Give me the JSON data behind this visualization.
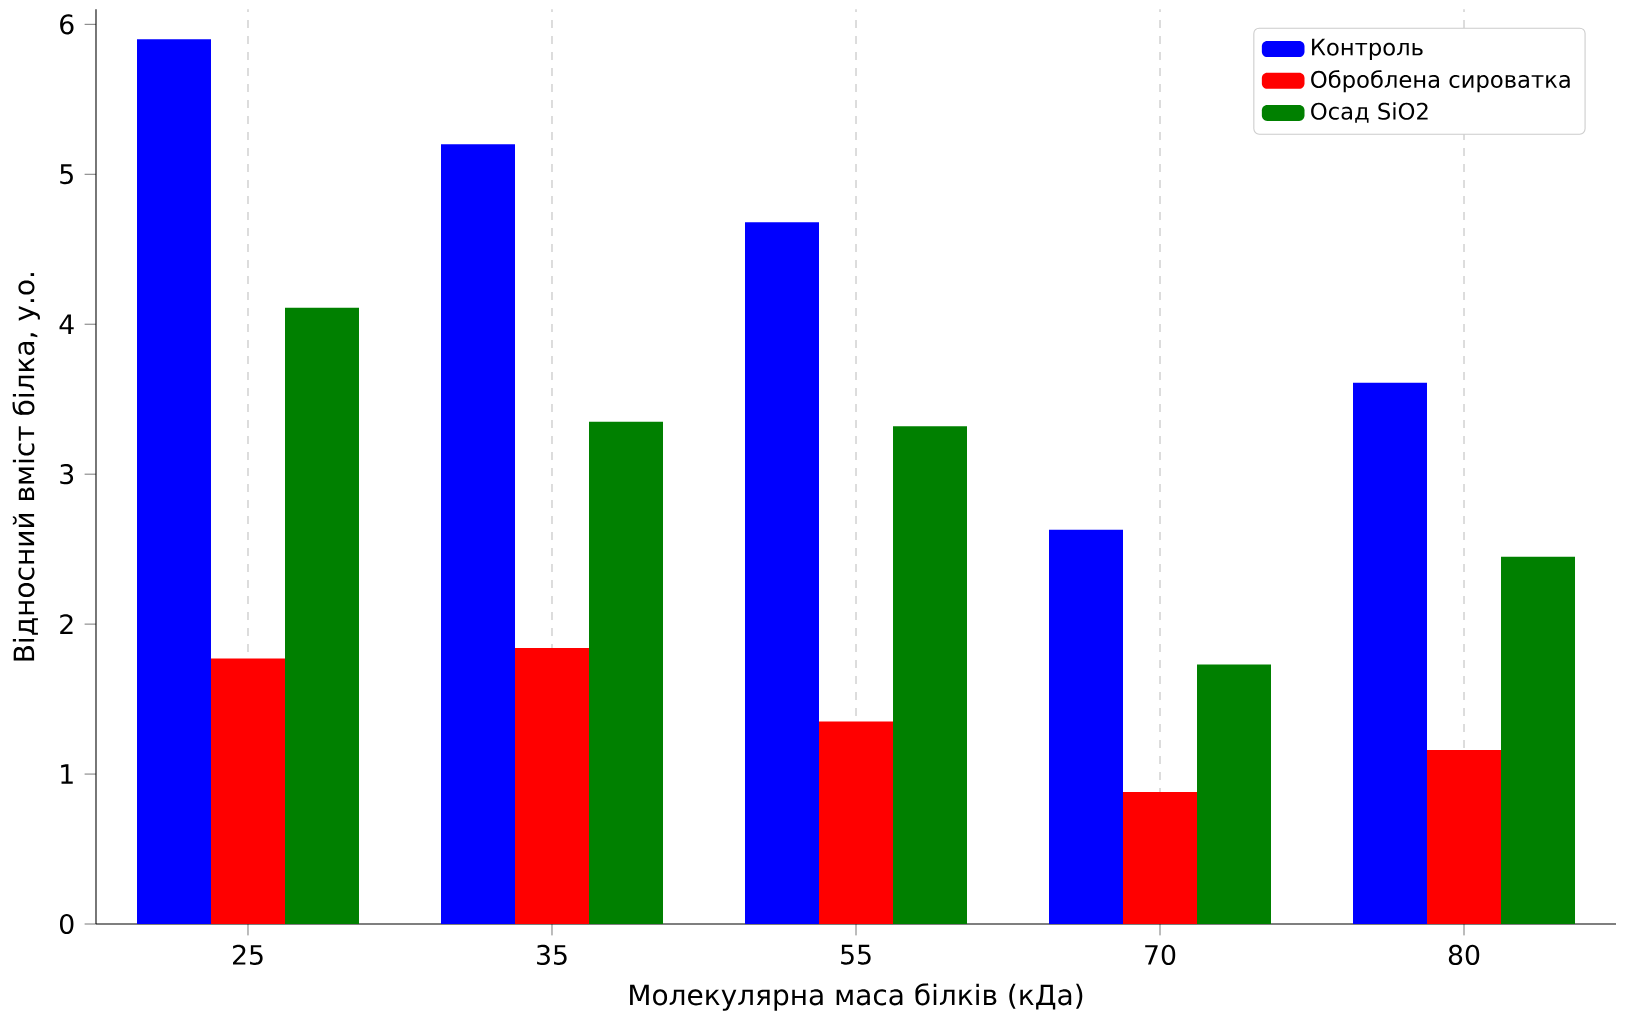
{
  "chart_data": {
    "type": "bar",
    "xlabel": "Молекулярна маса білків (кДа)",
    "ylabel": "Відносний вміст білка, у.о.",
    "categories": [
      "25",
      "35",
      "55",
      "70",
      "80"
    ],
    "series": [
      {
        "name": "Контроль",
        "color": "#0000ff",
        "values": [
          5.9,
          5.2,
          4.68,
          2.63,
          3.61
        ]
      },
      {
        "name": "Оброблена сироватка",
        "color": "#ff0000",
        "values": [
          1.77,
          1.84,
          1.35,
          0.88,
          1.16
        ]
      },
      {
        "name": "Осад SiO2",
        "color": "#008000",
        "values": [
          4.11,
          3.35,
          3.32,
          1.73,
          2.45
        ]
      }
    ],
    "ylim": [
      0,
      6.1
    ],
    "yticks": [
      0,
      1,
      2,
      3,
      4,
      5,
      6
    ],
    "grid": "x",
    "legend": "top right"
  }
}
